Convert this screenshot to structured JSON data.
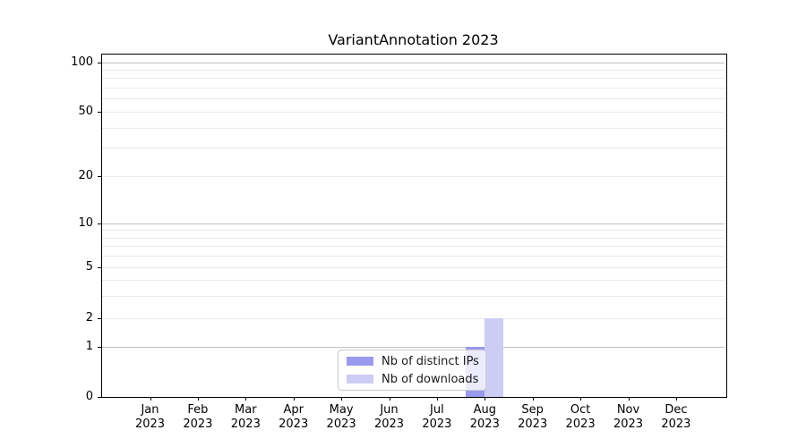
{
  "chart_data": {
    "type": "bar",
    "title": "VariantAnnotation 2023",
    "categories": [
      {
        "month": "Jan",
        "year": "2023"
      },
      {
        "month": "Feb",
        "year": "2023"
      },
      {
        "month": "Mar",
        "year": "2023"
      },
      {
        "month": "Apr",
        "year": "2023"
      },
      {
        "month": "May",
        "year": "2023"
      },
      {
        "month": "Jun",
        "year": "2023"
      },
      {
        "month": "Jul",
        "year": "2023"
      },
      {
        "month": "Aug",
        "year": "2023"
      },
      {
        "month": "Sep",
        "year": "2023"
      },
      {
        "month": "Oct",
        "year": "2023"
      },
      {
        "month": "Nov",
        "year": "2023"
      },
      {
        "month": "Dec",
        "year": "2023"
      }
    ],
    "series": [
      {
        "name": "Nb of distinct IPs",
        "color": "#9999ee",
        "values": [
          0,
          0,
          0,
          0,
          0,
          0,
          0,
          1,
          0,
          0,
          0,
          0
        ]
      },
      {
        "name": "Nb of downloads",
        "color": "#ccccf5",
        "values": [
          0,
          0,
          0,
          0,
          0,
          0,
          0,
          2,
          0,
          0,
          0,
          0
        ]
      }
    ],
    "y_axis": {
      "scale": "log-like",
      "tick_values": [
        0,
        1,
        2,
        5,
        10,
        20,
        50,
        100
      ],
      "major_gridlines": [
        1,
        10,
        100
      ],
      "minor_gridlines": [
        2,
        3,
        4,
        5,
        6,
        7,
        8,
        9,
        20,
        30,
        40,
        50,
        60,
        70,
        80,
        90
      ],
      "ylim": [
        0,
        113
      ]
    },
    "legend": {
      "position": "lower center"
    },
    "grid": true,
    "colors": {
      "spine": "#000000",
      "major_grid": "#c0c0c0",
      "minor_grid": "#eaeaea",
      "text": "#000000"
    }
  }
}
